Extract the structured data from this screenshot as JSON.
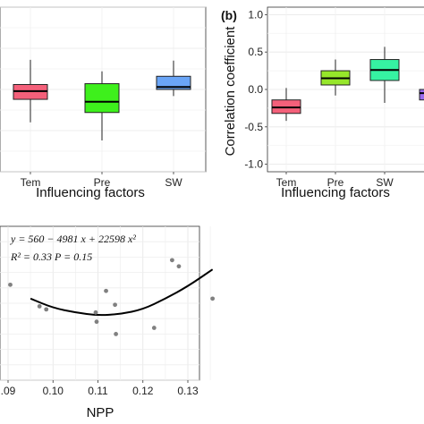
{
  "chart_data": [
    {
      "type": "box",
      "panel_label": "",
      "xlabel": "Influencing factors",
      "ylabel": "",
      "ylim": [
        -1.0,
        1.0
      ],
      "yticks": [],
      "categories": [
        "Tem",
        "Pre",
        "SW"
      ],
      "boxes": [
        {
          "category": "Tem",
          "min": -0.4,
          "q1": -0.12,
          "median": -0.02,
          "q3": 0.06,
          "max": 0.36,
          "color": "#f4607a"
        },
        {
          "category": "Pre",
          "min": -0.62,
          "q1": -0.28,
          "median": -0.15,
          "q3": 0.07,
          "max": 0.22,
          "color": "#3ef01c"
        },
        {
          "category": "SW",
          "min": -0.08,
          "q1": 0.0,
          "median": 0.03,
          "q3": 0.16,
          "max": 0.35,
          "color": "#6aa5f7"
        }
      ]
    },
    {
      "type": "box",
      "panel_label": "(b)",
      "xlabel": "Influencing factors",
      "ylabel": "Correlation coefficient",
      "ylim": [
        -1.1,
        1.1
      ],
      "yticks": [
        -1.0,
        -0.5,
        0.0,
        0.5,
        1.0
      ],
      "ytick_labels": [
        "-1.0",
        "-0.5",
        "0.0",
        "0.5",
        "1.0"
      ],
      "categories": [
        "Tem",
        "Pre",
        "SW"
      ],
      "boxes": [
        {
          "category": "Tem",
          "min": -0.42,
          "q1": -0.32,
          "median": -0.24,
          "q3": -0.14,
          "max": 0.02,
          "color": "#f4607a"
        },
        {
          "category": "Pre",
          "min": -0.08,
          "q1": 0.06,
          "median": 0.15,
          "q3": 0.25,
          "max": 0.4,
          "color": "#96e62a"
        },
        {
          "category": "SW",
          "min": -0.18,
          "q1": 0.12,
          "median": 0.26,
          "q3": 0.4,
          "max": 0.57,
          "color": "#36f2a2"
        },
        {
          "category": "",
          "min": -0.25,
          "q1": -0.14,
          "median": -0.05,
          "q3": 0.0,
          "max": 0.12,
          "color": "#9b6cf0"
        }
      ]
    },
    {
      "type": "scatter",
      "xlabel": "NPP",
      "ylabel": "",
      "xlim": [
        0.09,
        0.137
      ],
      "xticks": [
        0.09,
        0.1,
        0.11,
        0.12,
        0.13
      ],
      "xtick_labels": [
        ".09",
        "0.10",
        "0.11",
        "0.12",
        "0.13"
      ],
      "ylim": [
        0,
        1
      ],
      "annotation_equation": "y = 560 − 4981 x + 22598 x²",
      "annotation_stats": "R² = 0.33   P = 0.15",
      "points": [
        {
          "x": 0.0905,
          "y": 0.62
        },
        {
          "x": 0.097,
          "y": 0.48
        },
        {
          "x": 0.0985,
          "y": 0.46
        },
        {
          "x": 0.1095,
          "y": 0.44
        },
        {
          "x": 0.1097,
          "y": 0.38
        },
        {
          "x": 0.1118,
          "y": 0.58
        },
        {
          "x": 0.1138,
          "y": 0.49
        },
        {
          "x": 0.114,
          "y": 0.3
        },
        {
          "x": 0.1225,
          "y": 0.34
        },
        {
          "x": 0.1265,
          "y": 0.78
        },
        {
          "x": 0.128,
          "y": 0.74
        },
        {
          "x": 0.1355,
          "y": 0.53
        }
      ],
      "fit_curve": [
        {
          "x": 0.095,
          "y": 0.53
        },
        {
          "x": 0.1,
          "y": 0.47
        },
        {
          "x": 0.105,
          "y": 0.44
        },
        {
          "x": 0.11,
          "y": 0.42
        },
        {
          "x": 0.115,
          "y": 0.43
        },
        {
          "x": 0.12,
          "y": 0.46
        },
        {
          "x": 0.125,
          "y": 0.53
        },
        {
          "x": 0.13,
          "y": 0.61
        },
        {
          "x": 0.1355,
          "y": 0.72
        }
      ]
    }
  ]
}
